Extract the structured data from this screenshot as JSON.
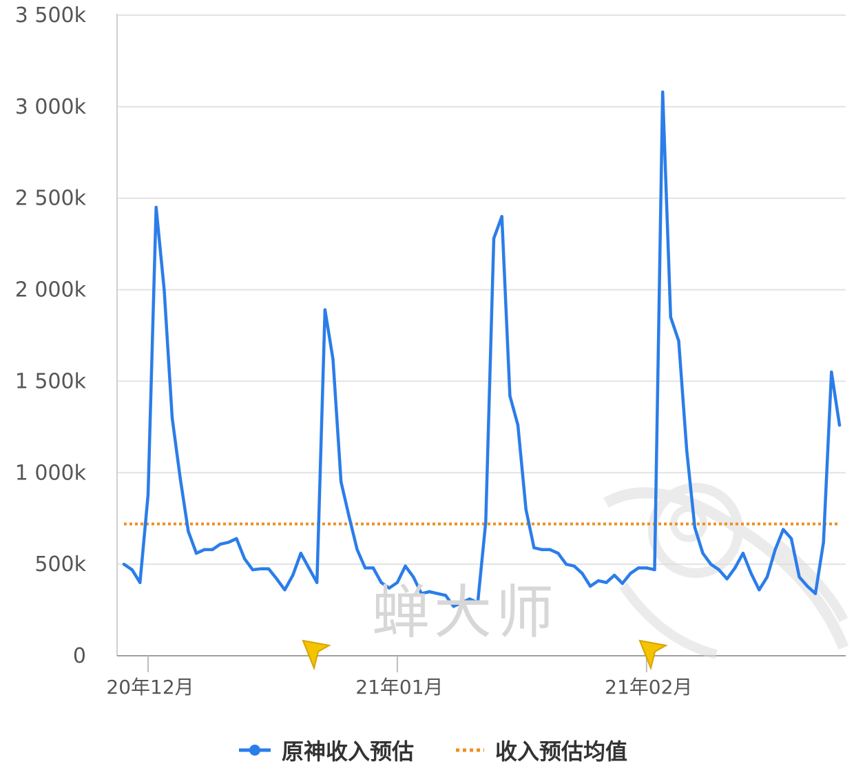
{
  "chart_data": {
    "type": "line",
    "y_ticks": [
      "0",
      "500k",
      "1 000k",
      "1 500k",
      "2 000k",
      "2 500k",
      "3 000k",
      "3 500k"
    ],
    "y_tick_values": [
      0,
      500,
      1000,
      1500,
      2000,
      2500,
      3000,
      3500
    ],
    "ylim": [
      0,
      3500
    ],
    "x_ticks": [
      "20年12月",
      "21年01月",
      "21年02月"
    ],
    "x_tick_index": [
      3,
      34,
      65
    ],
    "grid": true,
    "legend_position": "bottom",
    "series": [
      {
        "name": "原神收入预估",
        "color": "#2b7de9",
        "values": [
          500,
          470,
          400,
          880,
          2450,
          2000,
          1300,
          970,
          680,
          560,
          580,
          580,
          610,
          620,
          640,
          530,
          470,
          475,
          475,
          420,
          360,
          440,
          560,
          480,
          400,
          1890,
          1620,
          950,
          760,
          580,
          480,
          480,
          400,
          370,
          400,
          490,
          430,
          340,
          350,
          340,
          330,
          270,
          290,
          310,
          290,
          730,
          2280,
          2400,
          1420,
          1260,
          800,
          590,
          580,
          580,
          560,
          500,
          490,
          450,
          380,
          410,
          400,
          440,
          395,
          450,
          480,
          480,
          470,
          3080,
          1850,
          1720,
          1120,
          700,
          560,
          500,
          470,
          420,
          480,
          560,
          450,
          360,
          430,
          580,
          690,
          640,
          430,
          380,
          340,
          620,
          1550,
          1260
        ]
      },
      {
        "name": "收入预估均值",
        "color": "#ee8f1f",
        "values": [
          720
        ]
      }
    ],
    "watermark": "蝉大师"
  }
}
